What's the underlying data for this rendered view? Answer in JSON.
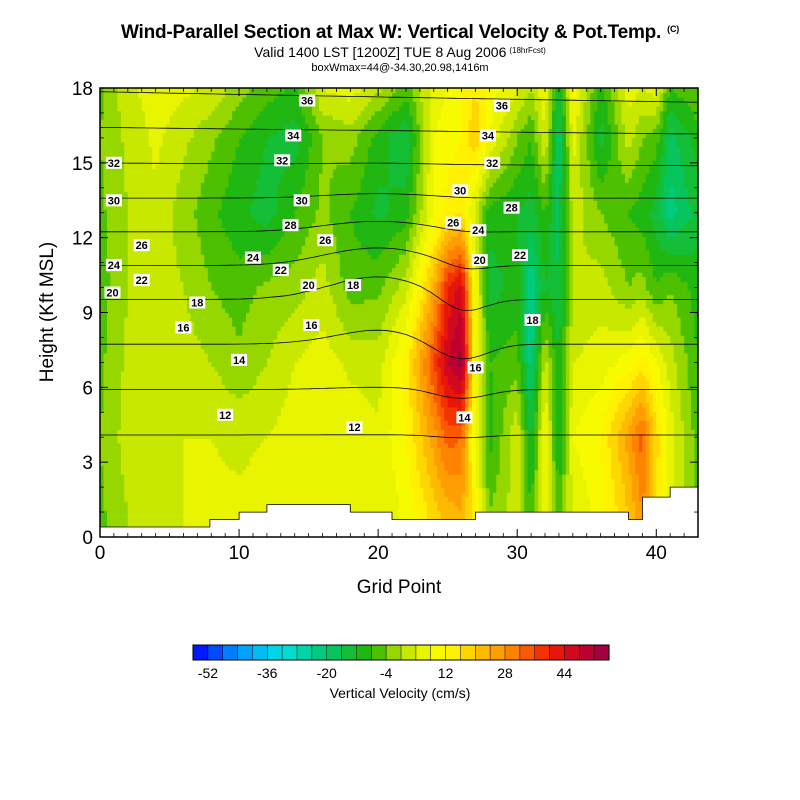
{
  "chart_data": {
    "type": "heatmap",
    "title": "Wind-Parallel Section at Max W: Vertical Velocity & Pot.Temp.",
    "title_mark": "(C)",
    "subtitle": "Valid 1400 LST [1200Z] TUE 8 Aug 2006",
    "subtitle_mark": "(18hrFcst)",
    "subtitle2": "boxWmax=44@-34.30,20.98,1416m",
    "xlabel": "Grid Point",
    "ylabel": "Height (Kft MSL)",
    "xlim": [
      0,
      43
    ],
    "ylim": [
      0,
      18
    ],
    "xticks": [
      0,
      10,
      20,
      30,
      40
    ],
    "yticks": [
      0,
      3,
      6,
      9,
      12,
      15,
      18
    ],
    "grid": false,
    "colorbar": {
      "label": "Vertical Velocity (cm/s)",
      "placement": "bottom",
      "tick_values": [
        -52,
        -36,
        -20,
        -4,
        12,
        28,
        44
      ],
      "min": -56,
      "max": 56,
      "step": 4
    },
    "velocity_columns": {
      "x": [
        0,
        2,
        4,
        6,
        8,
        10,
        12,
        14,
        16,
        18,
        20,
        22,
        24,
        25,
        26,
        27,
        28,
        30,
        31,
        32,
        33,
        34,
        36,
        38,
        39,
        40,
        41,
        43
      ],
      "y": [
        1,
        4,
        7,
        10,
        13,
        16,
        18
      ],
      "values": [
        [
          -5,
          -4,
          -5,
          -6,
          -5,
          -4,
          -5
        ],
        [
          0,
          2,
          1,
          0,
          0,
          1,
          3
        ],
        [
          2,
          4,
          3,
          2,
          3,
          5,
          6
        ],
        [
          4,
          4,
          2,
          0,
          -2,
          1,
          5
        ],
        [
          5,
          4,
          0,
          -4,
          -7,
          -3,
          3
        ],
        [
          5,
          3,
          -3,
          -6,
          -11,
          -8,
          -2
        ],
        [
          6,
          4,
          0,
          -3,
          -14,
          -12,
          -6
        ],
        [
          7,
          6,
          4,
          -2,
          -8,
          -14,
          -9
        ],
        [
          6,
          8,
          6,
          2,
          -3,
          -4,
          4
        ],
        [
          5,
          7,
          3,
          -6,
          -8,
          -2,
          6
        ],
        [
          4,
          5,
          2,
          -5,
          -13,
          -10,
          1
        ],
        [
          9,
          12,
          14,
          2,
          -10,
          -16,
          -6
        ],
        [
          18,
          26,
          36,
          24,
          8,
          8,
          6
        ],
        [
          22,
          34,
          48,
          40,
          14,
          10,
          8
        ],
        [
          24,
          32,
          54,
          46,
          16,
          12,
          12
        ],
        [
          12,
          6,
          10,
          8,
          2,
          20,
          16
        ],
        [
          -4,
          -10,
          -8,
          -14,
          -10,
          8,
          10
        ],
        [
          2,
          4,
          -6,
          -10,
          -12,
          -4,
          5
        ],
        [
          -8,
          -14,
          -22,
          -24,
          -14,
          -8,
          0
        ],
        [
          6,
          10,
          2,
          -12,
          -8,
          4,
          8
        ],
        [
          -6,
          -14,
          -12,
          -16,
          -18,
          -20,
          -14
        ],
        [
          4,
          8,
          4,
          0,
          2,
          6,
          10
        ],
        [
          10,
          12,
          6,
          2,
          -4,
          -14,
          -10
        ],
        [
          20,
          26,
          10,
          -4,
          -8,
          2,
          6
        ],
        [
          28,
          34,
          14,
          -2,
          -10,
          -4,
          4
        ],
        [
          16,
          18,
          8,
          -8,
          -14,
          -6,
          6
        ],
        [
          4,
          6,
          2,
          -4,
          -22,
          -18,
          -8
        ],
        [
          -4,
          -6,
          -8,
          -10,
          -14,
          -10,
          -4
        ]
      ]
    },
    "isentropes_C": {
      "levels": [
        12,
        14,
        16,
        18,
        20,
        22,
        24,
        26,
        28,
        30,
        32,
        34,
        36
      ],
      "labels": [
        {
          "text": "12",
          "x": 9,
          "y": 4.9
        },
        {
          "text": "12",
          "x": 18.3,
          "y": 4.4
        },
        {
          "text": "14",
          "x": 10,
          "y": 7.1
        },
        {
          "text": "14",
          "x": 26.2,
          "y": 4.8
        },
        {
          "text": "16",
          "x": 6,
          "y": 8.4
        },
        {
          "text": "16",
          "x": 15.2,
          "y": 8.5
        },
        {
          "text": "16",
          "x": 27,
          "y": 6.8
        },
        {
          "text": "18",
          "x": 7,
          "y": 9.4
        },
        {
          "text": "18",
          "x": 18.2,
          "y": 10.1
        },
        {
          "text": "18",
          "x": 31.1,
          "y": 8.7
        },
        {
          "text": "20",
          "x": 0.9,
          "y": 9.8
        },
        {
          "text": "20",
          "x": 15,
          "y": 10.1
        },
        {
          "text": "20",
          "x": 27.3,
          "y": 11.1
        },
        {
          "text": "22",
          "x": 3,
          "y": 10.3
        },
        {
          "text": "22",
          "x": 13,
          "y": 10.7
        },
        {
          "text": "22",
          "x": 30.2,
          "y": 11.3
        },
        {
          "text": "24",
          "x": 1,
          "y": 10.9
        },
        {
          "text": "24",
          "x": 11,
          "y": 11.2
        },
        {
          "text": "24",
          "x": 27.2,
          "y": 12.3
        },
        {
          "text": "26",
          "x": 3,
          "y": 11.7
        },
        {
          "text": "26",
          "x": 16.2,
          "y": 11.9
        },
        {
          "text": "26",
          "x": 25.4,
          "y": 12.6
        },
        {
          "text": "28",
          "x": 13.7,
          "y": 12.5
        },
        {
          "text": "28",
          "x": 29.6,
          "y": 13.2
        },
        {
          "text": "30",
          "x": 1,
          "y": 13.5
        },
        {
          "text": "30",
          "x": 14.5,
          "y": 13.5
        },
        {
          "text": "30",
          "x": 25.9,
          "y": 13.9
        },
        {
          "text": "32",
          "x": 1,
          "y": 15.0
        },
        {
          "text": "32",
          "x": 13.1,
          "y": 15.1
        },
        {
          "text": "32",
          "x": 28.2,
          "y": 15.0
        },
        {
          "text": "34",
          "x": 13.9,
          "y": 16.1
        },
        {
          "text": "34",
          "x": 27.9,
          "y": 16.1
        },
        {
          "text": "36",
          "x": 14.9,
          "y": 17.5
        },
        {
          "text": "36",
          "x": 28.9,
          "y": 17.3
        }
      ]
    },
    "terrain": {
      "x": [
        0,
        7.9,
        7.9,
        10,
        10,
        12,
        12,
        18,
        18,
        21,
        21,
        27,
        27,
        38,
        38,
        39,
        39,
        41,
        41,
        43
      ],
      "y": [
        0.4,
        0.4,
        0.7,
        0.7,
        1.0,
        1.0,
        1.3,
        1.3,
        1.0,
        1.0,
        0.7,
        0.7,
        1.0,
        1.0,
        0.7,
        0.7,
        1.6,
        1.6,
        2.0,
        2.0
      ]
    }
  }
}
